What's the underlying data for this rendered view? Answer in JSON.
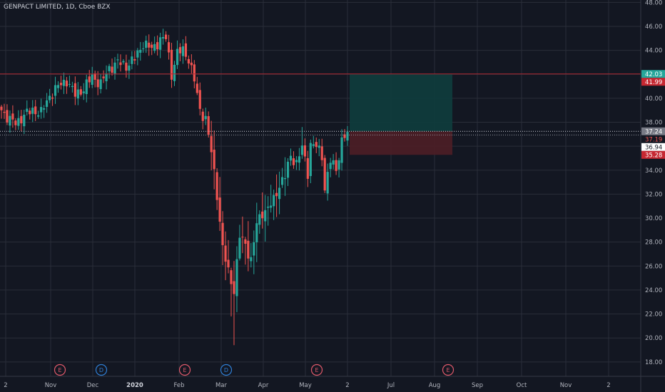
{
  "header": {
    "symbol_title": "GENPACT LIMITED, 1D, Cboe BZX"
  },
  "colors": {
    "background": "#131722",
    "grid": "#2a2e39",
    "text": "#b2b5be",
    "up": "#26a69a",
    "down": "#ef5350",
    "resistance_line": "#b22833",
    "profit_zone": "#0f3b3c",
    "loss_zone": "#4a1d26",
    "earnings": "#e0596a",
    "dividend": "#2f7fd6"
  },
  "icons": {
    "earnings": "E",
    "dividend": "D"
  },
  "chart_data": {
    "type": "candlestick",
    "ylim": [
      16.8,
      48.2
    ],
    "y_ticks": [
      "18.00",
      "20.00",
      "22.00",
      "24.00",
      "26.00",
      "28.00",
      "30.00",
      "32.00",
      "34.00",
      "36.00",
      "38.00",
      "40.00",
      "42.00",
      "44.00",
      "46.00",
      "48.00"
    ],
    "x_ticks": [
      "2",
      "Nov",
      "Dec",
      "2020",
      "Feb",
      "Mar",
      "Apr",
      "May",
      "2",
      "Jul",
      "Aug",
      "Sep",
      "Oct",
      "Nov",
      "2"
    ],
    "grid": true,
    "legend": "none",
    "resistance_level": 42.03,
    "position": {
      "stop_level": 35.28,
      "entry_level": 37.24,
      "target_level": 42.03
    },
    "price_labels": [
      {
        "text": "42.03",
        "value": 42.03,
        "style": "teal"
      },
      {
        "text": "41.99",
        "value": 41.99,
        "style": "red"
      },
      {
        "text": "37.24",
        "value": 37.24,
        "style": "gray"
      },
      {
        "text": "37.19",
        "value": 37.19,
        "style": "dark-red"
      },
      {
        "text": "36.94",
        "value": 36.94,
        "style": "white"
      },
      {
        "text": "35.28",
        "value": 35.28,
        "style": "red"
      }
    ],
    "event_markers": [
      {
        "type": "earnings",
        "label": "E",
        "month": "Oct"
      },
      {
        "type": "dividend",
        "label": "D",
        "month": "Dec"
      },
      {
        "type": "earnings",
        "label": "E",
        "month": "Feb"
      },
      {
        "type": "dividend",
        "label": "D",
        "month": "Mar"
      },
      {
        "type": "earnings",
        "label": "E",
        "month": "May"
      },
      {
        "type": "earnings",
        "label": "E",
        "month": "Aug"
      }
    ],
    "close_anchors": [
      [
        0,
        39.0
      ],
      [
        3,
        38.2
      ],
      [
        5,
        37.9
      ],
      [
        8,
        38.6
      ],
      [
        11,
        39.0
      ],
      [
        14,
        38.8
      ],
      [
        17,
        40.2
      ],
      [
        20,
        41.0
      ],
      [
        23,
        41.5
      ],
      [
        26,
        40.3
      ],
      [
        29,
        40.8
      ],
      [
        32,
        41.8
      ],
      [
        35,
        41.2
      ],
      [
        38,
        42.5
      ],
      [
        41,
        43.0
      ],
      [
        44,
        42.7
      ],
      [
        47,
        43.3
      ],
      [
        50,
        44.6
      ],
      [
        53,
        44.1
      ],
      [
        56,
        44.9
      ],
      [
        58,
        45.0
      ],
      [
        60,
        42.0
      ],
      [
        62,
        43.8
      ],
      [
        64,
        44.0
      ],
      [
        66,
        43.3
      ],
      [
        68,
        41.5
      ],
      [
        70,
        39.0
      ],
      [
        72,
        38.3
      ],
      [
        74,
        35.5
      ],
      [
        76,
        32.0
      ],
      [
        78,
        27.5
      ],
      [
        80,
        25.5
      ],
      [
        82,
        24.0
      ],
      [
        84,
        28.5
      ],
      [
        86,
        27.8
      ],
      [
        88,
        26.5
      ],
      [
        90,
        29.5
      ],
      [
        92,
        30.5
      ],
      [
        94,
        30.8
      ],
      [
        96,
        31.5
      ],
      [
        98,
        32.8
      ],
      [
        100,
        33.5
      ],
      [
        102,
        35.2
      ],
      [
        104,
        34.6
      ],
      [
        106,
        35.9
      ],
      [
        108,
        33.8
      ],
      [
        109,
        36.2
      ],
      [
        111,
        36.0
      ],
      [
        113,
        35.2
      ],
      [
        114,
        32.5
      ],
      [
        116,
        34.8
      ],
      [
        118,
        34.0
      ],
      [
        120,
        36.5
      ],
      [
        122,
        37.19
      ]
    ]
  }
}
